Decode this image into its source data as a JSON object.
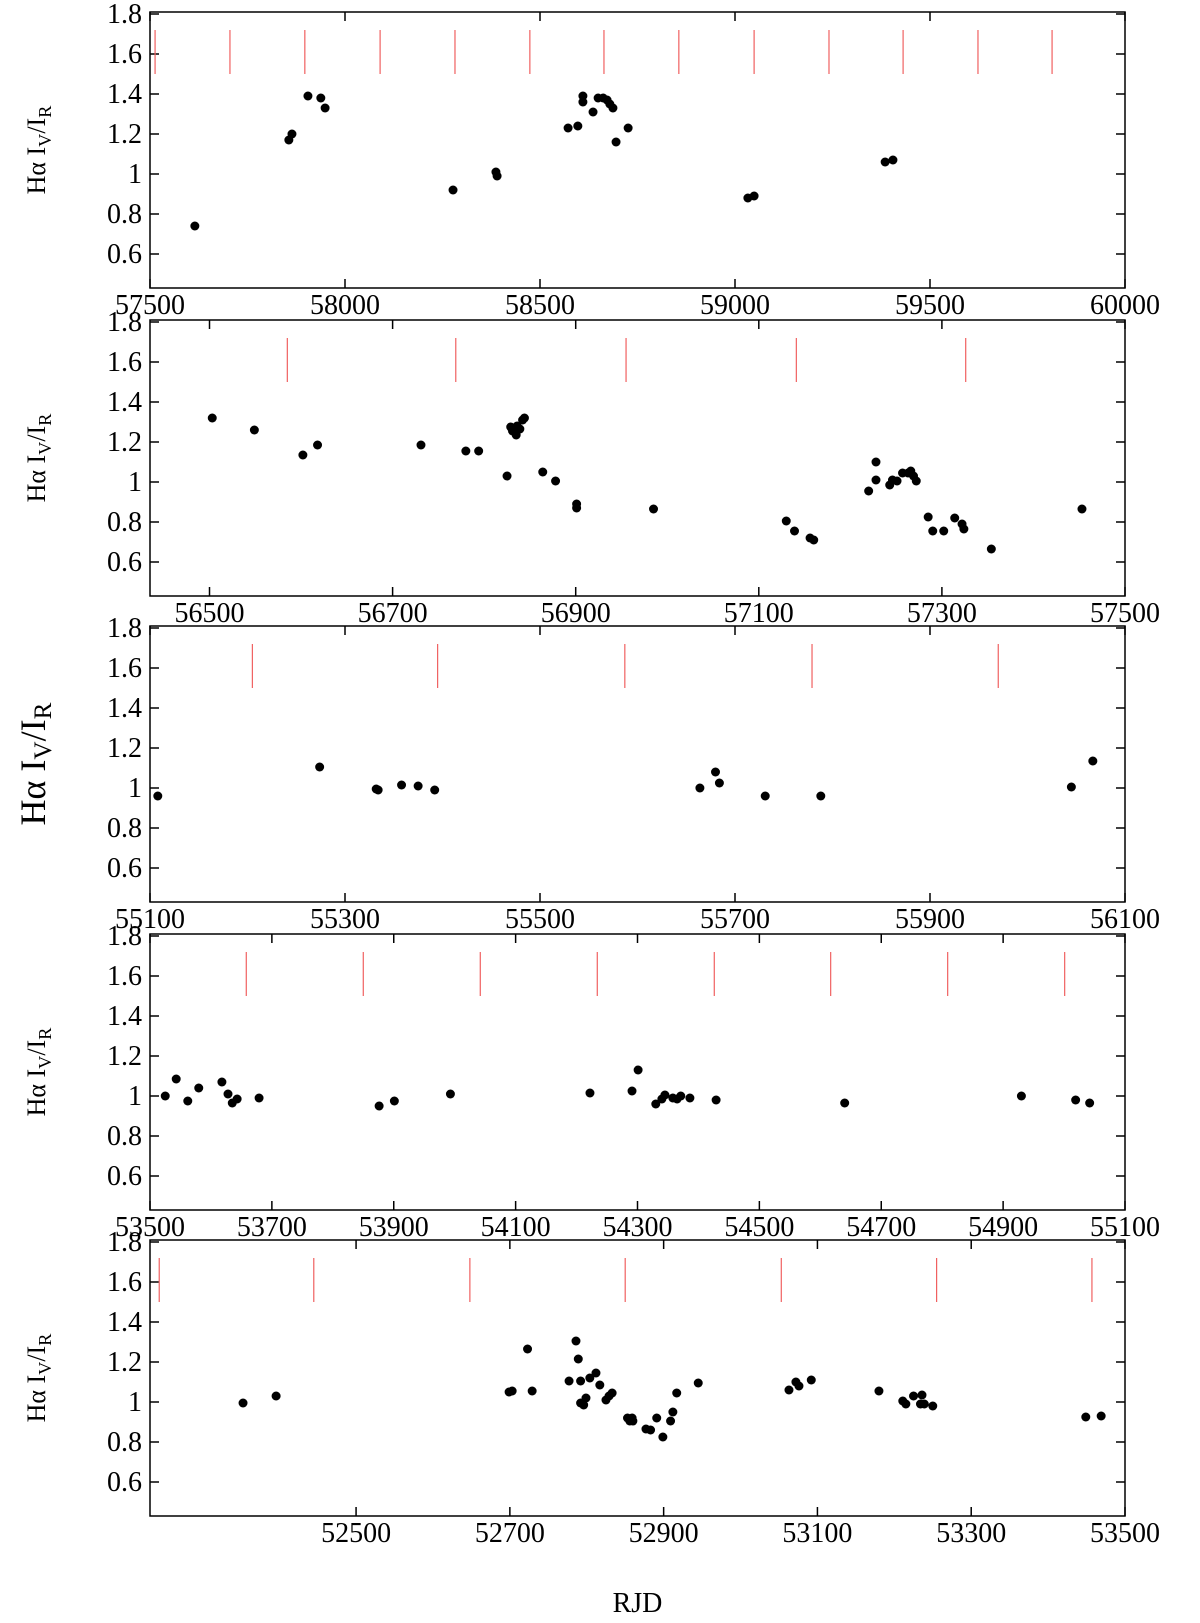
{
  "chart_data": [
    {
      "type": "scatter",
      "color": "#000000",
      "marker_color": "#f06060",
      "ylabel": [
        "Hα I",
        "V",
        "/I",
        "R"
      ],
      "x": [
        57615,
        57856,
        57864,
        57905,
        57938,
        57949,
        58277,
        58387,
        58390,
        58572,
        58597,
        58610,
        58610,
        58636,
        58649,
        58662,
        58672,
        58679,
        58687,
        58695,
        58726,
        59033,
        59049,
        59385,
        59405
      ],
      "values": [
        0.74,
        1.17,
        1.2,
        1.39,
        1.38,
        1.33,
        0.92,
        1.01,
        0.99,
        1.23,
        1.24,
        1.39,
        1.36,
        1.31,
        1.38,
        1.38,
        1.37,
        1.35,
        1.33,
        1.16,
        1.23,
        0.88,
        0.89,
        1.06,
        1.07
      ],
      "markers": [
        57513,
        57705,
        57897,
        58090,
        58282,
        58474,
        58664,
        58856,
        59049,
        59241,
        59431,
        59623,
        59813
      ],
      "xlim": [
        57500,
        60000
      ],
      "xticks": [
        57500,
        58000,
        58500,
        59000,
        59500,
        60000
      ],
      "ylim": [
        0.43,
        1.81
      ],
      "yticks": [
        0.6,
        0.8,
        1.0,
        1.2,
        1.4,
        1.6,
        1.8
      ]
    },
    {
      "type": "scatter",
      "color": "#000000",
      "marker_color": "#f06060",
      "ylabel": [
        "Hα I",
        "V",
        "/I",
        "R"
      ],
      "x": [
        56503,
        56549,
        56602,
        56618,
        56731,
        56780,
        56794,
        56825,
        56829,
        56831,
        56835,
        56836,
        56839,
        56842,
        56844,
        56864,
        56878,
        56901,
        56901,
        56985,
        57130,
        57139,
        57156,
        57160,
        57220,
        57228,
        57228,
        57243,
        57246,
        57251,
        57257,
        57263,
        57266,
        57269,
        57272,
        57285,
        57290,
        57302,
        57314,
        57322,
        57324,
        57354,
        57453
      ],
      "values": [
        1.32,
        1.26,
        1.135,
        1.185,
        1.185,
        1.155,
        1.155,
        1.03,
        1.275,
        1.255,
        1.235,
        1.28,
        1.265,
        1.31,
        1.32,
        1.05,
        1.005,
        0.89,
        0.87,
        0.865,
        0.805,
        0.755,
        0.72,
        0.71,
        0.955,
        1.1,
        1.01,
        0.985,
        1.01,
        1.005,
        1.045,
        1.045,
        1.055,
        1.03,
        1.005,
        0.825,
        0.755,
        0.755,
        0.82,
        0.79,
        0.765,
        0.665,
        0.865
      ],
      "markers": [
        56585,
        56769,
        56955,
        57141,
        57326
      ],
      "xlim": [
        56435,
        57500
      ],
      "xticks": [
        56500,
        56700,
        56900,
        57100,
        57300,
        57500
      ],
      "ylim": [
        0.43,
        1.81
      ],
      "yticks": [
        0.6,
        0.8,
        1.0,
        1.2,
        1.4,
        1.6,
        1.8
      ]
    },
    {
      "type": "scatter",
      "color": "#000000",
      "marker_color": "#f06060",
      "ylabel": [
        "Hα I",
        "V",
        "/I",
        "R"
      ],
      "x": [
        55108,
        55274,
        55332,
        55334,
        55358,
        55375,
        55392,
        55664,
        55680,
        55684,
        55731,
        55788,
        56045,
        56067
      ],
      "values": [
        0.96,
        1.105,
        0.995,
        0.99,
        1.015,
        1.01,
        0.99,
        1.0,
        1.08,
        1.025,
        0.96,
        0.96,
        1.005,
        1.135
      ],
      "markers": [
        55205,
        55395,
        55587,
        55779,
        55970
      ],
      "xlim": [
        55100,
        56100
      ],
      "xticks": [
        55100,
        55300,
        55500,
        55700,
        55900,
        56100
      ],
      "ylim": [
        0.43,
        1.81
      ],
      "yticks": [
        0.6,
        0.8,
        1.0,
        1.2,
        1.4,
        1.6,
        1.8
      ]
    },
    {
      "type": "scatter",
      "color": "#000000",
      "marker_color": "#f06060",
      "ylabel": [
        "Hα I",
        "V",
        "/I",
        "R"
      ],
      "x": [
        53525,
        53543,
        53562,
        53580,
        53618,
        53628,
        53635,
        53643,
        53679,
        53876,
        53901,
        53993,
        54222,
        54291,
        54301,
        54330,
        54340,
        54345,
        54358,
        54365,
        54371,
        54386,
        54429,
        54640,
        54930,
        55019,
        55042
      ],
      "values": [
        1.0,
        1.085,
        0.975,
        1.04,
        1.07,
        1.01,
        0.965,
        0.985,
        0.99,
        0.95,
        0.975,
        1.01,
        1.015,
        1.025,
        1.13,
        0.96,
        0.985,
        1.005,
        0.99,
        0.985,
        1.0,
        0.99,
        0.98,
        0.965,
        1.0,
        0.98,
        0.965
      ],
      "markers": [
        53658,
        53850,
        54042,
        54234,
        54426,
        54617,
        54809,
        55001
      ],
      "xlim": [
        53500,
        55100
      ],
      "xticks": [
        53500,
        53700,
        53900,
        54100,
        54300,
        54500,
        54700,
        54900,
        55100
      ],
      "ylim": [
        0.43,
        1.81
      ],
      "yticks": [
        0.6,
        0.8,
        1.0,
        1.2,
        1.4,
        1.6,
        1.8
      ]
    },
    {
      "type": "scatter",
      "color": "#000000",
      "marker_color": "#f06060",
      "ylabel": [
        "Hα I",
        "V",
        "/I",
        "R"
      ],
      "xlabel": "RJD",
      "x": [
        52353,
        52396,
        52699,
        52703,
        52723,
        52729,
        52777,
        52786,
        52789,
        52792,
        52792,
        52796,
        52799,
        52804,
        52812,
        52817,
        52825,
        52829,
        52833,
        52853,
        52856,
        52860,
        52859,
        52877,
        52883,
        52891,
        52899,
        52909,
        52912,
        52917,
        52945,
        53063,
        53072,
        53076,
        53092,
        53180,
        53211,
        53215,
        53225,
        53234,
        53236,
        53239,
        53250,
        53449,
        53469
      ],
      "values": [
        0.995,
        1.03,
        1.05,
        1.055,
        1.265,
        1.055,
        1.105,
        1.305,
        1.215,
        1.105,
        0.995,
        0.985,
        1.02,
        1.12,
        1.145,
        1.085,
        1.01,
        1.03,
        1.045,
        0.92,
        0.905,
        0.905,
        0.92,
        0.865,
        0.86,
        0.92,
        0.825,
        0.905,
        0.95,
        1.045,
        1.095,
        1.06,
        1.1,
        1.08,
        1.11,
        1.055,
        1.005,
        0.99,
        1.03,
        0.99,
        1.035,
        0.99,
        0.98,
        0.925,
        0.93
      ],
      "markers": [
        52244,
        52445,
        52648,
        52850,
        53053,
        53255,
        53457
      ],
      "xlim": [
        52232,
        53500
      ],
      "xticks": [
        52500,
        52700,
        52900,
        53100,
        53300,
        53500
      ],
      "ylim": [
        0.43,
        1.81
      ],
      "yticks": [
        0.6,
        0.8,
        1.0,
        1.2,
        1.4,
        1.6,
        1.8
      ]
    }
  ]
}
